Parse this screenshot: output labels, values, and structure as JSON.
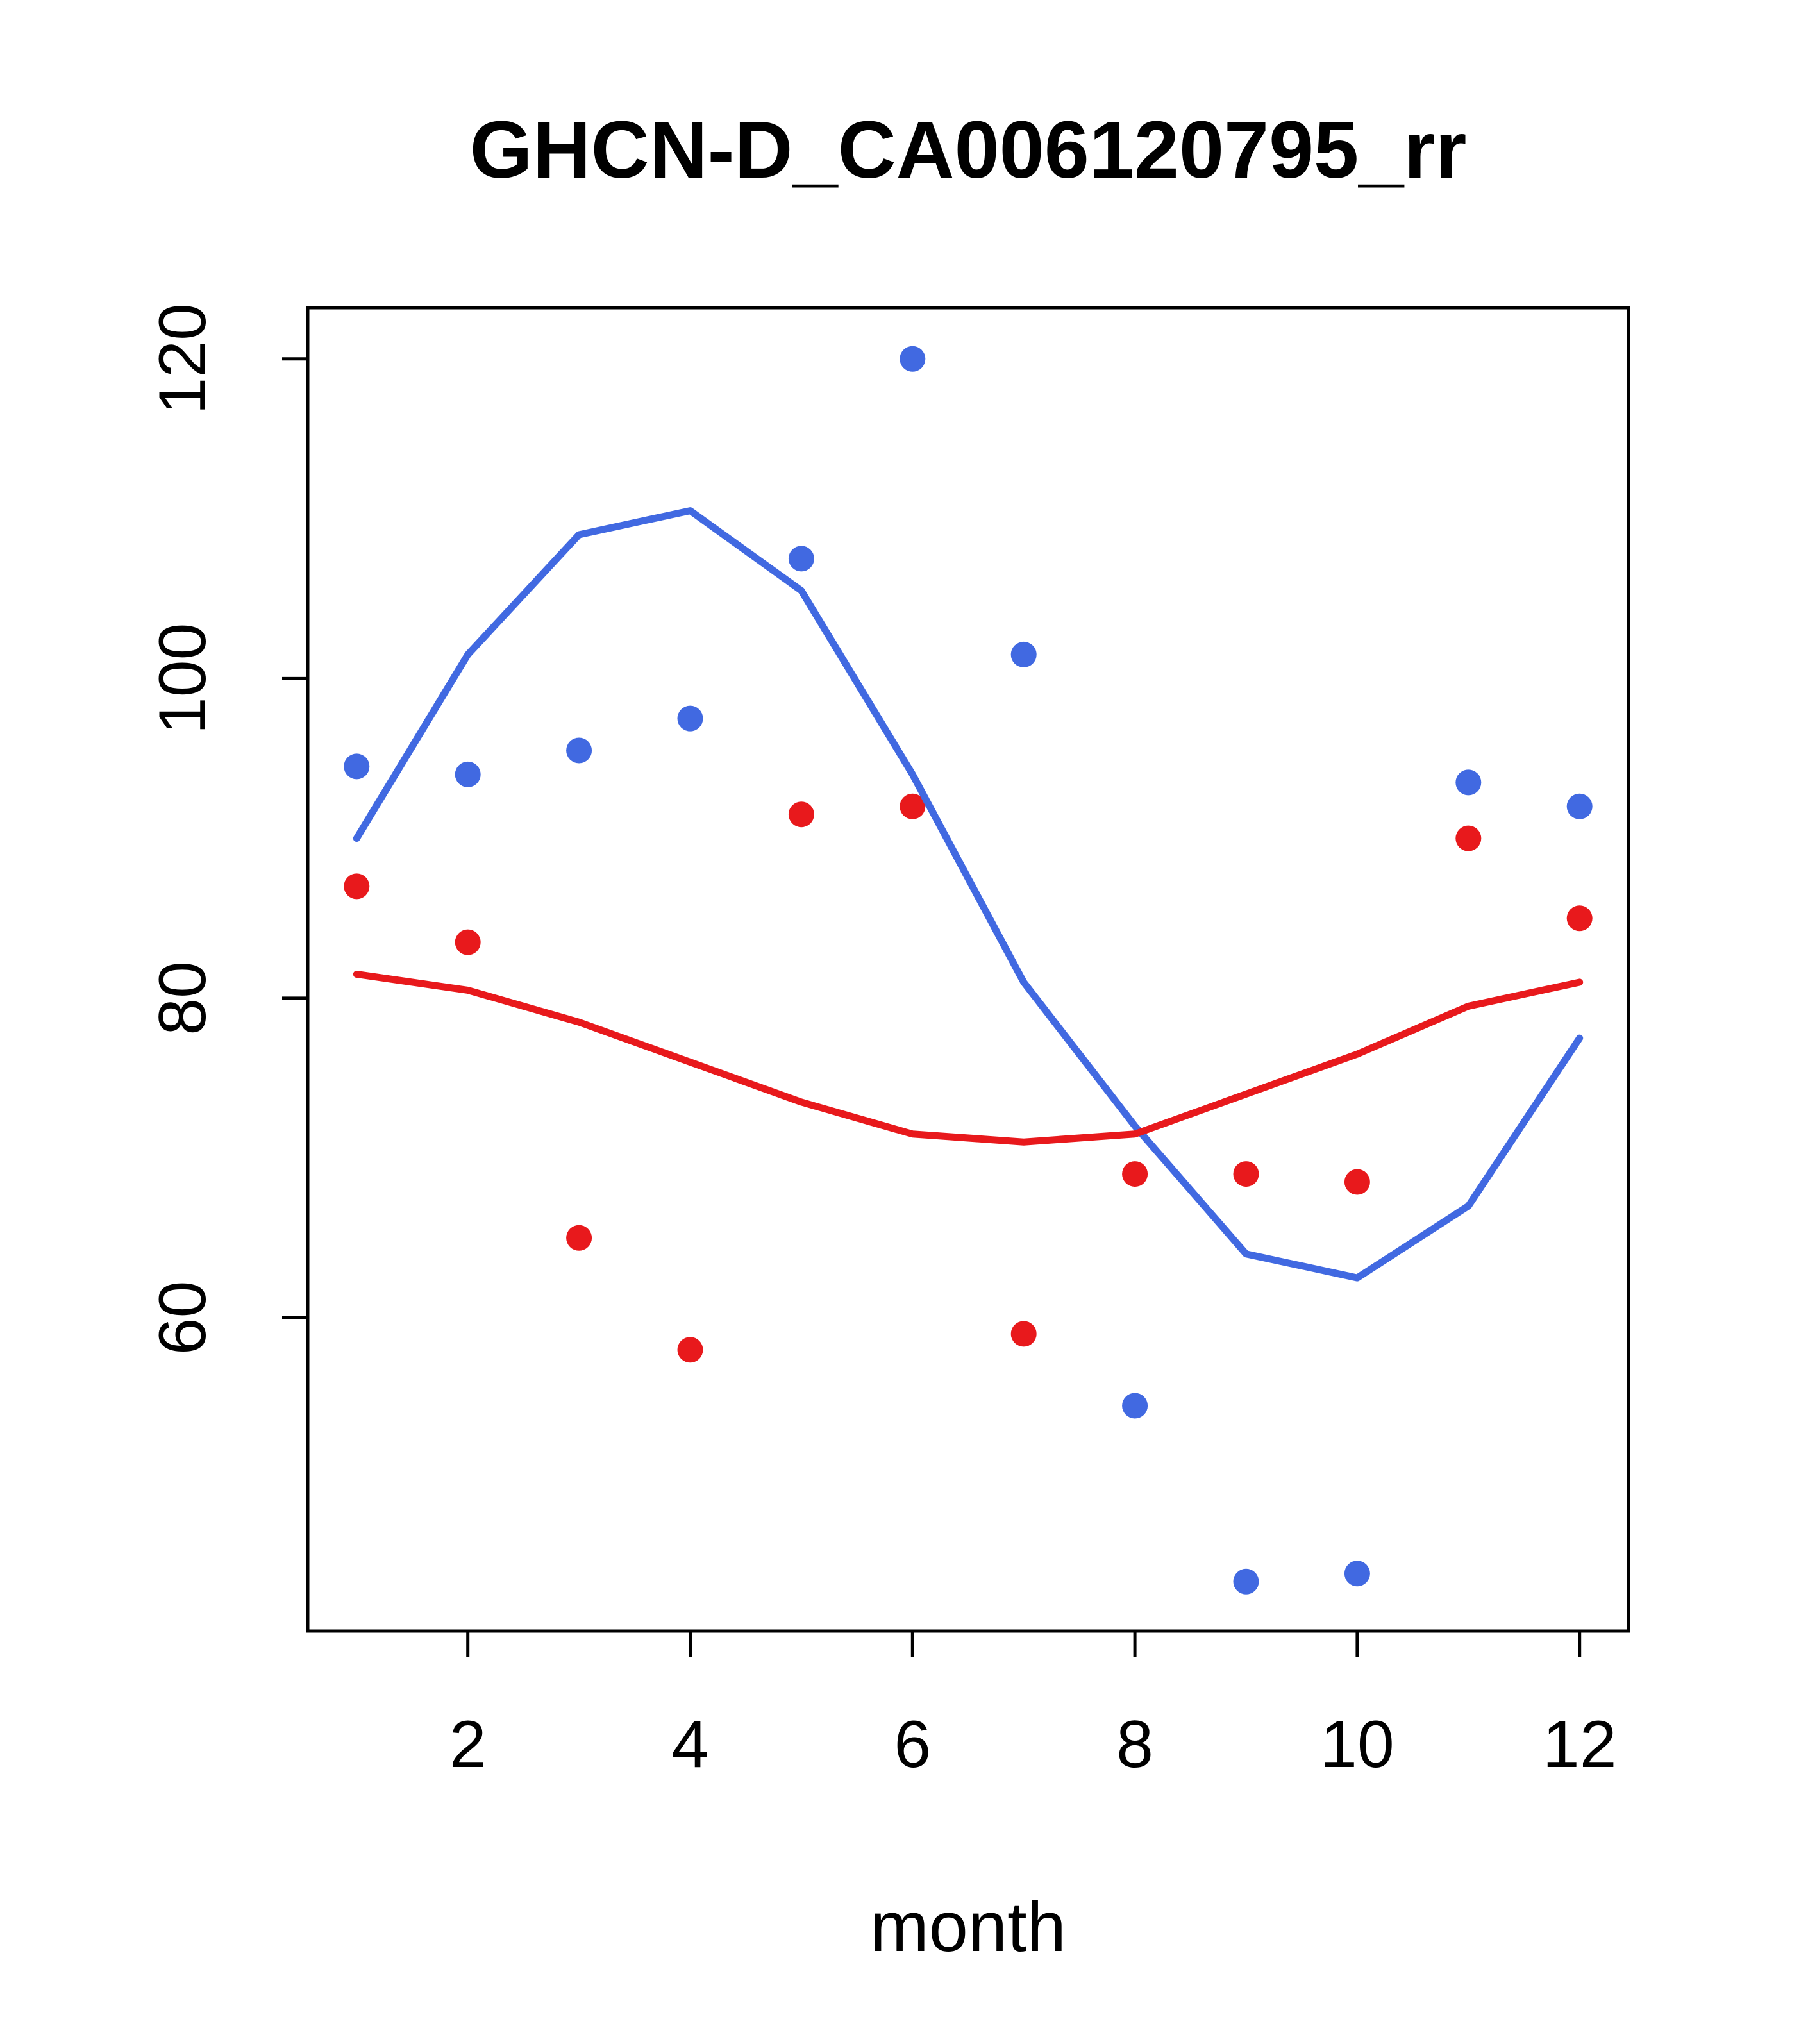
{
  "chart_data": {
    "type": "line",
    "title": "GHCN-D_CA006120795_rr",
    "xlabel": "month",
    "ylabel": "",
    "xlim": [
      0.56,
      12.44
    ],
    "ylim": [
      40.4,
      123.2
    ],
    "xticks": [
      2,
      4,
      6,
      8,
      10,
      12
    ],
    "yticks": [
      60,
      80,
      100,
      120
    ],
    "x": [
      1,
      2,
      3,
      4,
      5,
      6,
      7,
      8,
      9,
      10,
      11,
      12
    ],
    "grid": false,
    "legend": "none",
    "colors": {
      "blue": "#4169E1",
      "red": "#E8191C",
      "axis": "#000000",
      "background": "#ffffff"
    },
    "series": [
      {
        "name": "blue-points",
        "type": "scatter",
        "color": "#4169E1",
        "values": [
          94.5,
          94,
          95.5,
          97.5,
          107.5,
          120,
          101.5,
          54.5,
          43.5,
          44,
          93.5,
          92
        ]
      },
      {
        "name": "red-points",
        "type": "scatter",
        "color": "#E8191C",
        "values": [
          87,
          83.5,
          65,
          58,
          91.5,
          92,
          59,
          69,
          69,
          68.5,
          90,
          85
        ]
      },
      {
        "name": "blue-smooth-line",
        "type": "line",
        "color": "#4169E1",
        "values": [
          90,
          101.5,
          109,
          110.5,
          105.5,
          94,
          81,
          72,
          64,
          62.5,
          67,
          77.5
        ]
      },
      {
        "name": "red-smooth-line",
        "type": "line",
        "color": "#E8191C",
        "values": [
          81.5,
          80.5,
          78.5,
          76,
          73.5,
          71.5,
          71,
          71.5,
          74,
          76.5,
          79.5,
          81
        ]
      }
    ]
  }
}
